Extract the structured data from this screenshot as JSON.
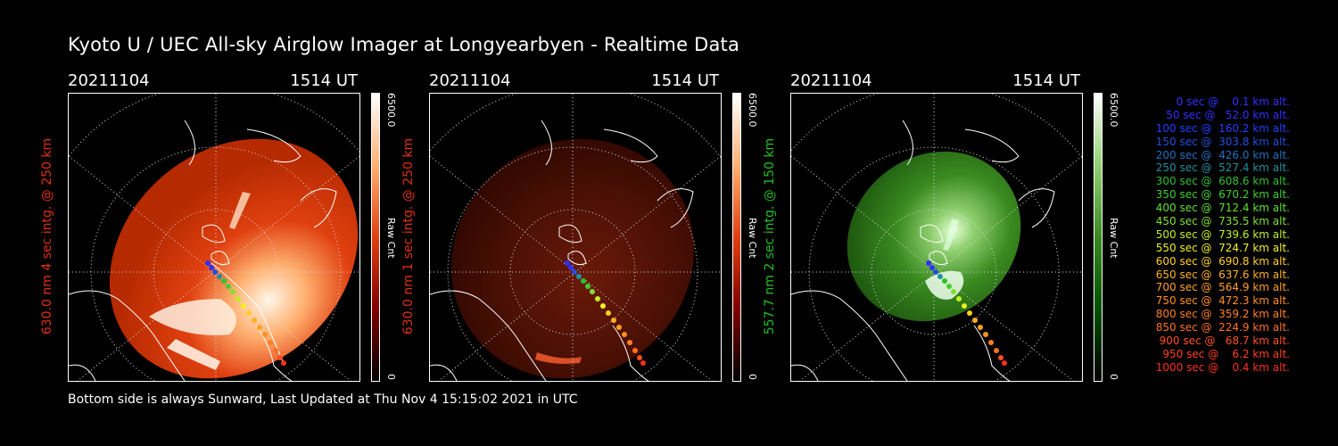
{
  "title": "Kyoto U / UEC All-sky Airglow Imager at Longyearbyen - Realtime Data",
  "panels": [
    {
      "date": "20211104",
      "time": "1514 UT",
      "ylabel": "630.0 nm 4 sec intg. @ 250 km",
      "label_color": "#e03010",
      "colorbar": {
        "max": "6500.0",
        "unit": "Raw Cnt",
        "min": "0",
        "color_low": "#800000",
        "color_high": "#ffffff"
      }
    },
    {
      "date": "20211104",
      "time": "1514 UT",
      "ylabel": "630.0 nm 1 sec intg. @ 250 km",
      "label_color": "#e03010",
      "colorbar": {
        "max": "6500.0",
        "unit": "Raw Cnt",
        "min": "0",
        "color_low": "#800000",
        "color_high": "#ffffff"
      }
    },
    {
      "date": "20211104",
      "time": "1514 UT",
      "ylabel": "557.7 nm 2 sec intg. @ 150 km",
      "label_color": "#20c020",
      "colorbar": {
        "max": "6500.0",
        "unit": "Raw Cnt",
        "min": "0",
        "color_low": "#005000",
        "color_high": "#ffffff"
      }
    }
  ],
  "legend": [
    {
      "text": "   0 sec @    0.1 km alt.",
      "color": "#3030ff"
    },
    {
      "text": "  50 sec @   52.0 km alt.",
      "color": "#3030ff"
    },
    {
      "text": " 100 sec @  160.2 km alt.",
      "color": "#2040ff"
    },
    {
      "text": " 150 sec @  303.8 km alt.",
      "color": "#2050e0"
    },
    {
      "text": " 200 sec @  426.0 km alt.",
      "color": "#2070c0"
    },
    {
      "text": " 250 sec @  527.4 km alt.",
      "color": "#2090a0"
    },
    {
      "text": " 300 sec @  608.6 km alt.",
      "color": "#30c030"
    },
    {
      "text": " 350 sec @  670.2 km alt.",
      "color": "#40d030"
    },
    {
      "text": " 400 sec @  712.4 km alt.",
      "color": "#60e030"
    },
    {
      "text": " 450 sec @  735.5 km alt.",
      "color": "#80e030"
    },
    {
      "text": " 500 sec @  739.6 km alt.",
      "color": "#c0f020"
    },
    {
      "text": " 550 sec @  724.7 km alt.",
      "color": "#f0f020"
    },
    {
      "text": " 600 sec @  690.8 km alt.",
      "color": "#ffd020"
    },
    {
      "text": " 650 sec @  637.6 km alt.",
      "color": "#ffb020"
    },
    {
      "text": " 700 sec @  564.9 km alt.",
      "color": "#ffa020"
    },
    {
      "text": " 750 sec @  472.3 km alt.",
      "color": "#ff9020"
    },
    {
      "text": " 800 sec @  359.2 km alt.",
      "color": "#ff8020"
    },
    {
      "text": " 850 sec @  224.9 km alt.",
      "color": "#ff7020"
    },
    {
      "text": " 900 sec @   68.7 km alt.",
      "color": "#ff5020"
    },
    {
      "text": " 950 sec @    6.2 km alt.",
      "color": "#ff4020"
    },
    {
      "text": "1000 sec @    0.4 km alt.",
      "color": "#ff3020"
    }
  ],
  "footer": "Bottom side is always Sunward, Last Updated at Thu Nov  4 15:15:02 2021 in UTC"
}
